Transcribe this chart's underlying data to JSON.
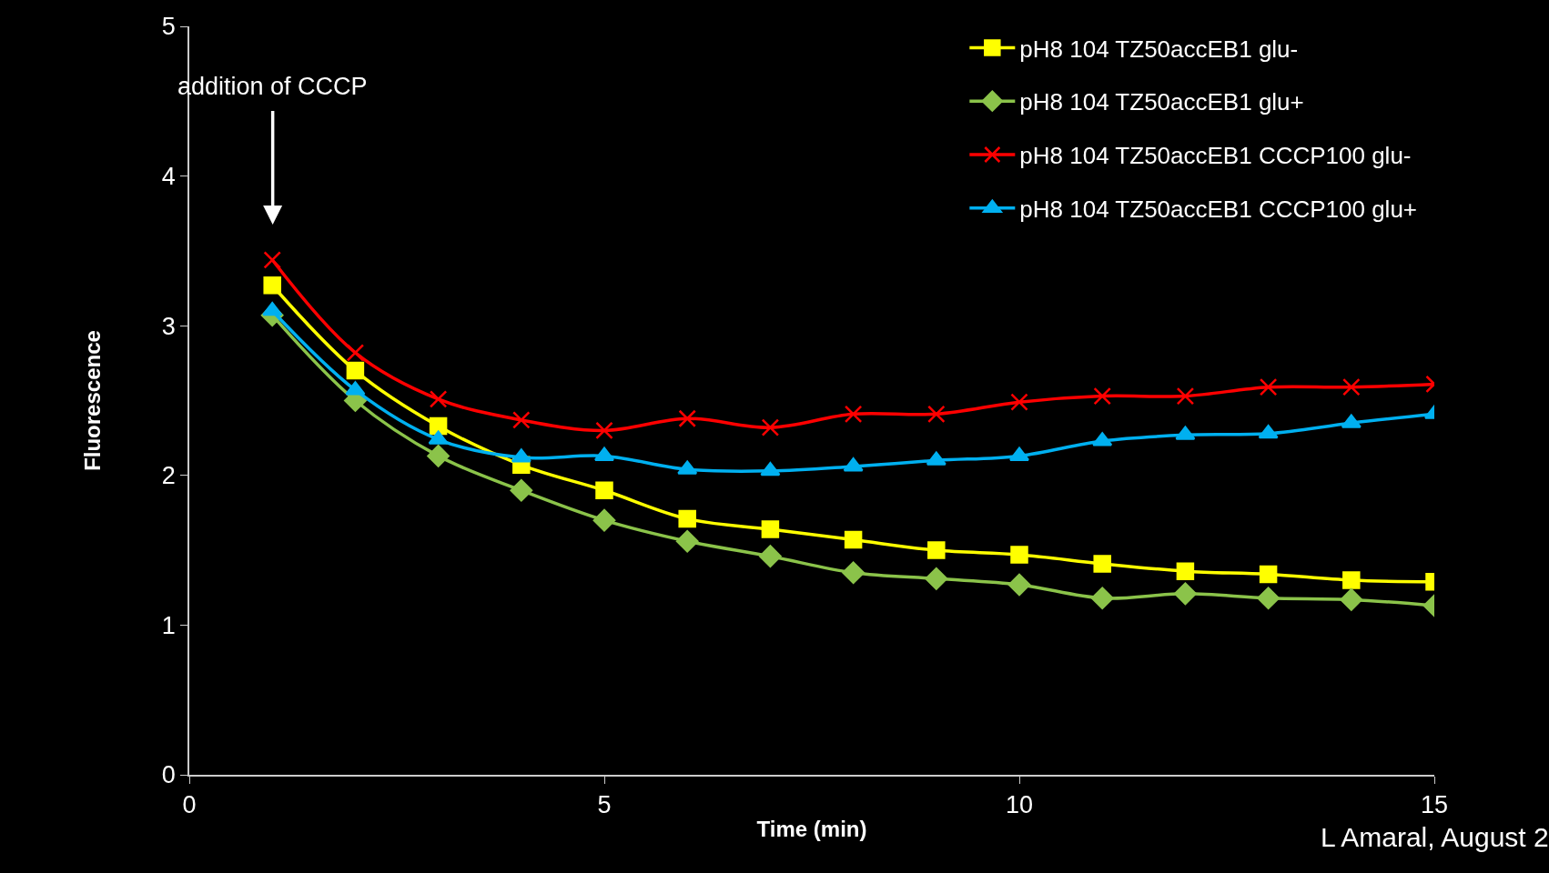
{
  "chart_data": {
    "type": "line",
    "xlabel": "Time (min)",
    "ylabel": "Fluorescence",
    "x": [
      1,
      2,
      3,
      4,
      5,
      6,
      7,
      8,
      9,
      10,
      11,
      12,
      13,
      14,
      15
    ],
    "xlim": [
      0,
      15
    ],
    "xticks": [
      0,
      5,
      10,
      15
    ],
    "ylim": [
      0,
      5
    ],
    "yticks": [
      0,
      1,
      2,
      3,
      4,
      5
    ],
    "grid": false,
    "legend": "top right",
    "series": [
      {
        "name": "pH8 104 TZ50accEB1 glu-",
        "color": "#ffff00",
        "marker": "square",
        "values": [
          3.27,
          2.7,
          2.33,
          2.07,
          1.9,
          1.71,
          1.64,
          1.57,
          1.5,
          1.47,
          1.41,
          1.36,
          1.34,
          1.3,
          1.29
        ]
      },
      {
        "name": "pH8 104 TZ50accEB1 glu+",
        "color": "#8bc34a",
        "marker": "diamond",
        "values": [
          3.07,
          2.5,
          2.13,
          1.9,
          1.7,
          1.56,
          1.46,
          1.35,
          1.31,
          1.27,
          1.18,
          1.21,
          1.18,
          1.17,
          1.13
        ]
      },
      {
        "name": "pH8 104 TZ50accEB1 CCCP100 glu-",
        "color": "#ff0000",
        "marker": "cross",
        "values": [
          3.44,
          2.82,
          2.51,
          2.37,
          2.3,
          2.38,
          2.32,
          2.41,
          2.41,
          2.49,
          2.53,
          2.53,
          2.59,
          2.59,
          2.61
        ]
      },
      {
        "name": "pH8 104 TZ50accEB1 CCCP100 glu+",
        "color": "#00b0f0",
        "marker": "triangle",
        "values": [
          3.1,
          2.57,
          2.24,
          2.12,
          2.13,
          2.04,
          2.03,
          2.06,
          2.1,
          2.13,
          2.23,
          2.27,
          2.28,
          2.35,
          2.41
        ]
      }
    ],
    "annotations": [
      "addition of CCCP",
      "L Amaral, August 2"
    ]
  }
}
